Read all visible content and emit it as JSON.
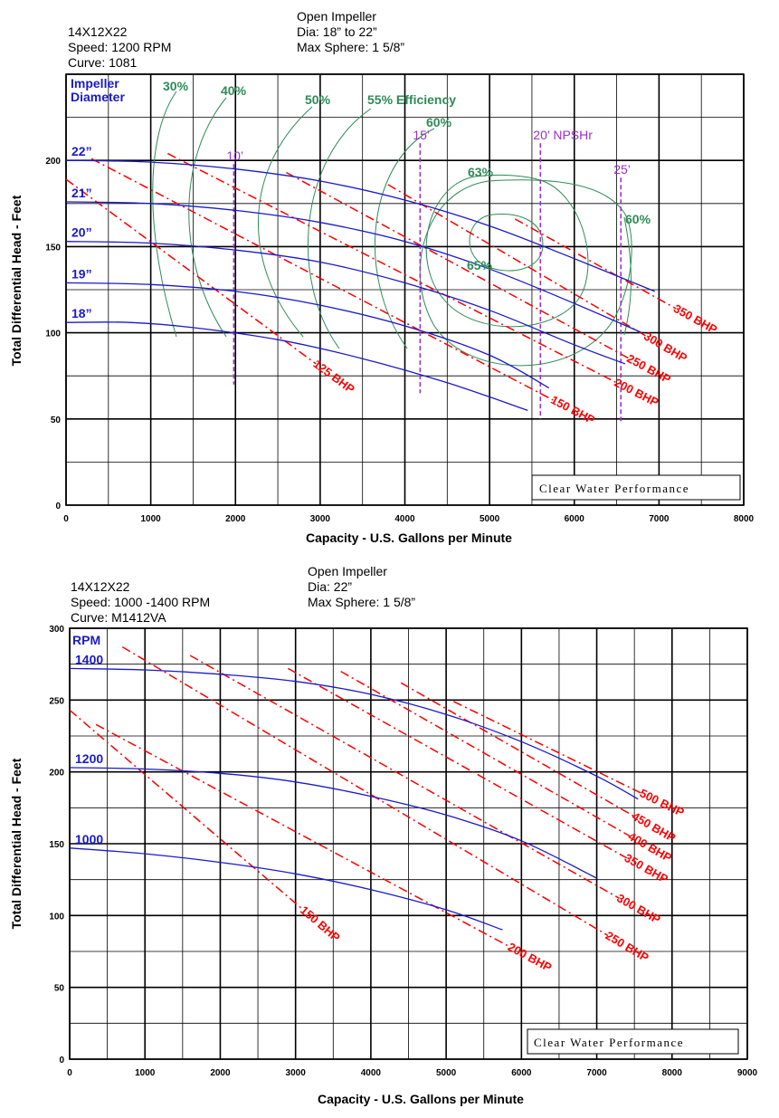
{
  "charts": [
    {
      "header": {
        "model": "14X12X22",
        "speed": "Speed: 1200 RPM",
        "curve": "Curve: 1081",
        "impeller": "Open Impeller",
        "dia": "Dia: 18” to 22”",
        "sphere": "Max Sphere: 1 5/8”"
      },
      "badge": "Clear Water Performance",
      "series_title": [
        "Impeller",
        "Diameter"
      ],
      "chart_data": {
        "type": "line",
        "xlabel": "Capacity - U.S. Gallons per Minute",
        "ylabel": "Total Differential Head - Feet",
        "xlim": [
          0,
          8000
        ],
        "ylim": [
          0,
          250
        ],
        "xticks": [
          "0",
          "1000",
          "2000",
          "3000",
          "4000",
          "5000",
          "6000",
          "7000",
          "8000"
        ],
        "yticks": [
          "0",
          "50",
          "100",
          "150",
          "200"
        ],
        "grid": true,
        "series": [
          {
            "name": "22”",
            "x": [
              0,
              1000,
              2000,
              3000,
              4000,
              5000,
              6000,
              6950
            ],
            "y": [
              200,
              199,
              195,
              188,
              177,
              162,
              143,
              124
            ]
          },
          {
            "name": "21”",
            "x": [
              0,
              1000,
              2000,
              3000,
              4000,
              5000,
              6000,
              6800
            ],
            "y": [
              176,
              175,
              171,
              164,
              153,
              137,
              117,
              100
            ]
          },
          {
            "name": "20”",
            "x": [
              0,
              1000,
              2000,
              3000,
              4000,
              5000,
              6000,
              6600
            ],
            "y": [
              153,
              152,
              148,
              141,
              129,
              113,
              93,
              82
            ]
          },
          {
            "name": "19”",
            "x": [
              0,
              1000,
              2000,
              3000,
              4000,
              5000,
              5700
            ],
            "y": [
              129,
              128,
              124,
              116,
              104,
              87,
              68
            ]
          },
          {
            "name": "18”",
            "x": [
              0,
              750,
              1500,
              2500,
              3500,
              4500,
              5450
            ],
            "y": [
              106,
              106,
              103,
              96,
              85,
              71,
              55
            ]
          }
        ],
        "bhp_lines": [
          {
            "name": "125 BHP",
            "x": [
              0,
              2950
            ],
            "y": [
              189,
              82
            ]
          },
          {
            "name": "150 BHP",
            "x": [
              300,
              5750
            ],
            "y": [
              201,
              61
            ]
          },
          {
            "name": "200 BHP",
            "x": [
              1200,
              6500
            ],
            "y": [
              204,
              71
            ]
          },
          {
            "name": "250 BHP",
            "x": [
              2600,
              6650
            ],
            "y": [
              193,
              85
            ]
          },
          {
            "name": "300 BHP",
            "x": [
              3800,
              6850
            ],
            "y": [
              186,
              98
            ]
          },
          {
            "name": "350 BHP",
            "x": [
              5300,
              7200
            ],
            "y": [
              166,
              114
            ]
          }
        ],
        "efficiency_labels": [
          "30%",
          "40%",
          "50%",
          "55% Efficiency",
          "60%",
          "63%",
          "65%",
          "60%"
        ],
        "npshr": [
          {
            "name": "10’",
            "x": 1980
          },
          {
            "name": "15’",
            "x": 4180
          },
          {
            "name": "20’ NPSHr",
            "x": 5600
          },
          {
            "name": "25’",
            "x": 6550
          }
        ]
      }
    },
    {
      "header": {
        "model": "14X12X22",
        "speed": "Speed: 1000 -1400 RPM",
        "curve": "Curve: M1412VA",
        "impeller": "Open Impeller",
        "dia": "Dia: 22”",
        "sphere": "Max Sphere: 1 5/8”"
      },
      "badge": "Clear Water Performance",
      "series_title": [
        "RPM"
      ],
      "chart_data": {
        "type": "line",
        "xlabel": "Capacity - U.S. Gallons per Minute",
        "ylabel": "Total Differential Head - Feet",
        "xlim": [
          0,
          9000
        ],
        "ylim": [
          0,
          300
        ],
        "xticks": [
          "0",
          "1000",
          "2000",
          "3000",
          "4000",
          "5000",
          "6000",
          "7000",
          "8000",
          "9000"
        ],
        "yticks": [
          "0",
          "50",
          "100",
          "150",
          "200",
          "250",
          "300"
        ],
        "grid": true,
        "series": [
          {
            "name": "1400",
            "x": [
              0,
              1000,
              2000,
              3000,
              4000,
              5000,
              6000,
              7000,
              7550
            ],
            "y": [
              272,
              271,
              268,
              263,
              254,
              240,
              221,
              197,
              181
            ]
          },
          {
            "name": "1200",
            "x": [
              0,
              1000,
              2000,
              3000,
              4000,
              5000,
              6000,
              7000
            ],
            "y": [
              203,
              202,
              199,
              193,
              183,
              170,
              152,
              126
            ]
          },
          {
            "name": "1000",
            "x": [
              0,
              1000,
              2000,
              3000,
              4000,
              5000,
              5750
            ],
            "y": [
              147,
              143,
              137,
              129,
              118,
              104,
              90
            ]
          }
        ],
        "bhp_lines": [
          {
            "name": "150 BHP",
            "x": [
              0,
              3100
            ],
            "y": [
              243,
              104
            ]
          },
          {
            "name": "200 BHP",
            "x": [
              350,
              5850
            ],
            "y": [
              233,
              78
            ]
          },
          {
            "name": "250 BHP",
            "x": [
              700,
              7150
            ],
            "y": [
              287,
              86
            ]
          },
          {
            "name": "300 BHP",
            "x": [
              1600,
              7300
            ],
            "y": [
              281,
              112
            ]
          },
          {
            "name": "350 BHP",
            "x": [
              2900,
              7400
            ],
            "y": [
              272,
              140
            ]
          },
          {
            "name": "400 BHP",
            "x": [
              3600,
              7450
            ],
            "y": [
              270,
              155
            ]
          },
          {
            "name": "450 BHP",
            "x": [
              4400,
              7500
            ],
            "y": [
              262,
              169
            ]
          },
          {
            "name": "500 BHP",
            "x": [
              5100,
              7600
            ],
            "y": [
              249,
              185
            ]
          }
        ]
      }
    }
  ],
  "colors": {
    "curve": "#1a1acc",
    "bhp": "#ff0000",
    "efficiency": "#2e8b57",
    "npshr": "#9b30c8",
    "grid": "#000000"
  }
}
